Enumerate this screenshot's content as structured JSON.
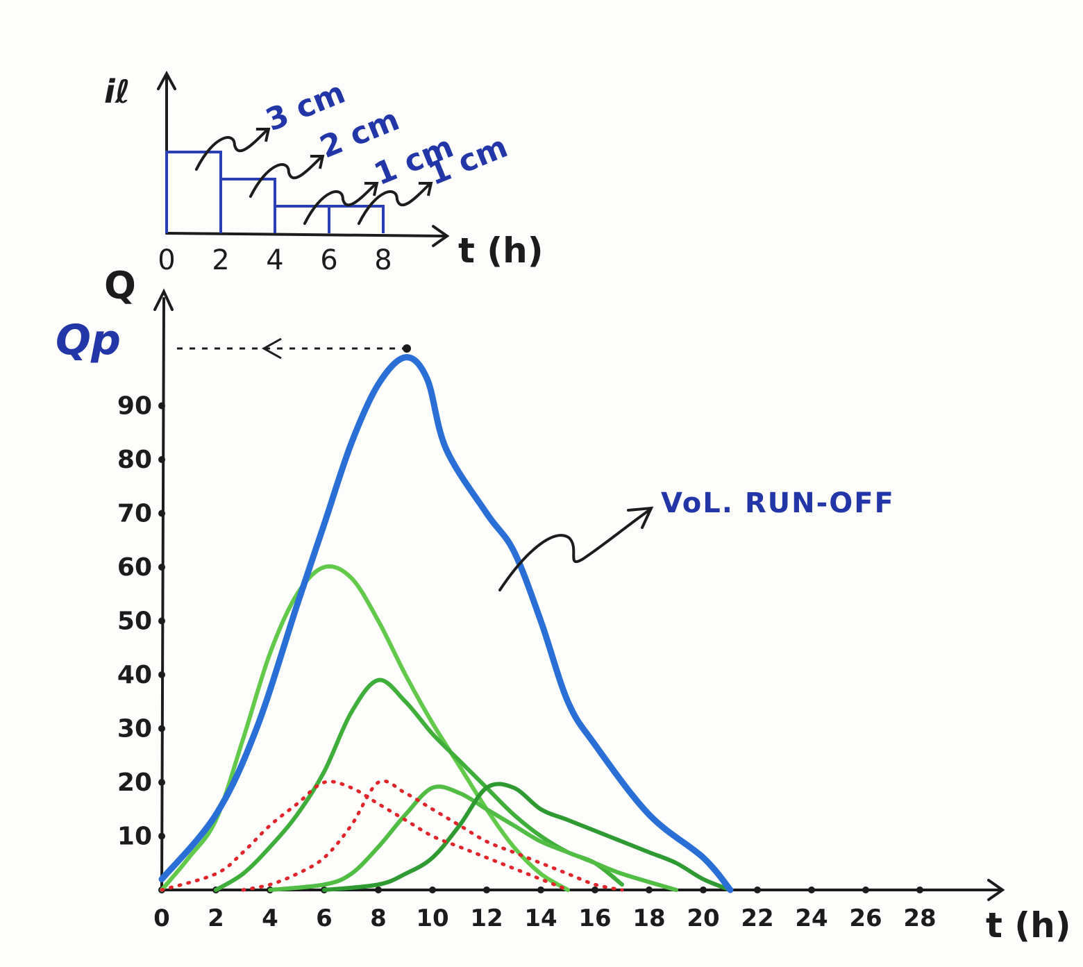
{
  "chart_data": [
    {
      "type": "bar",
      "ylabel": "iℓ",
      "xlabel": "t (h)",
      "x_ticks": [
        "0",
        "2",
        "4",
        "6",
        "8"
      ],
      "blocks": [
        {
          "t_start": 0,
          "t_end": 2,
          "label": "3 cm",
          "depth": 3
        },
        {
          "t_start": 2,
          "t_end": 4,
          "label": "2 cm",
          "depth": 2
        },
        {
          "t_start": 4,
          "t_end": 6,
          "label": "1 cm",
          "depth": 1
        },
        {
          "t_start": 6,
          "t_end": 8,
          "label": "1 cm",
          "depth": 1
        }
      ]
    },
    {
      "type": "line",
      "ylabel": "Q",
      "xlabel": "t (h)",
      "peak_label": "Qp",
      "xlim": [
        0,
        30
      ],
      "ylim": [
        0,
        110
      ],
      "x_ticks": [
        0,
        2,
        4,
        6,
        8,
        10,
        12,
        14,
        16,
        18,
        20,
        22,
        24,
        26,
        28
      ],
      "y_ticks": [
        10,
        20,
        30,
        40,
        50,
        60,
        70,
        80,
        90
      ],
      "annotation": "VoL. RUN-OFF",
      "series": [
        {
          "style": "solid",
          "color": "#2a6fd6",
          "points": [
            [
              0,
              2
            ],
            [
              2,
              14
            ],
            [
              3.5,
              30
            ],
            [
              5,
              53
            ],
            [
              6,
              68
            ],
            [
              7,
              83
            ],
            [
              8,
              94
            ],
            [
              9,
              99
            ],
            [
              9.8,
              95
            ],
            [
              10.5,
              82
            ],
            [
              12,
              70
            ],
            [
              13,
              63
            ],
            [
              14,
              50
            ],
            [
              15,
              35
            ],
            [
              16,
              27
            ],
            [
              18,
              14
            ],
            [
              20,
              6
            ],
            [
              21,
              0
            ]
          ]
        },
        {
          "style": "solid",
          "color": "#62c94a",
          "points": [
            [
              0,
              0
            ],
            [
              1,
              6
            ],
            [
              2,
              13
            ],
            [
              3,
              28
            ],
            [
              4,
              44
            ],
            [
              5,
              55
            ],
            [
              6,
              60
            ],
            [
              7,
              58
            ],
            [
              8,
              50
            ],
            [
              9,
              40
            ],
            [
              10,
              31
            ],
            [
              11,
              23
            ],
            [
              12,
              15
            ],
            [
              13,
              8
            ],
            [
              14,
              3
            ],
            [
              15,
              0
            ]
          ]
        },
        {
          "style": "solid",
          "color": "#3fae3a",
          "points": [
            [
              2,
              0
            ],
            [
              3,
              3
            ],
            [
              4,
              8
            ],
            [
              5,
              14
            ],
            [
              6,
              22
            ],
            [
              7,
              33
            ],
            [
              8,
              39
            ],
            [
              9,
              35
            ],
            [
              10,
              29
            ],
            [
              11,
              24
            ],
            [
              12,
              19
            ],
            [
              13,
              14
            ],
            [
              14,
              10
            ],
            [
              15,
              7
            ],
            [
              16,
              5
            ],
            [
              17,
              1
            ]
          ]
        },
        {
          "style": "solid",
          "color": "#52bd45",
          "points": [
            [
              4,
              0
            ],
            [
              6,
              1
            ],
            [
              7,
              3
            ],
            [
              8,
              8
            ],
            [
              9,
              14
            ],
            [
              10,
              19
            ],
            [
              11,
              18
            ],
            [
              12,
              15
            ],
            [
              13,
              12
            ],
            [
              14,
              9
            ],
            [
              15,
              7
            ],
            [
              16,
              5
            ],
            [
              17,
              3
            ],
            [
              19,
              0
            ]
          ]
        },
        {
          "style": "solid",
          "color": "#2f9a32",
          "points": [
            [
              6,
              0
            ],
            [
              8,
              1
            ],
            [
              9,
              3
            ],
            [
              10,
              6
            ],
            [
              11,
              12
            ],
            [
              12,
              19
            ],
            [
              13,
              19
            ],
            [
              14,
              15
            ],
            [
              15,
              13
            ],
            [
              16,
              11
            ],
            [
              17,
              9
            ],
            [
              18,
              7
            ],
            [
              19,
              5
            ],
            [
              20,
              2
            ],
            [
              21,
              0
            ]
          ]
        },
        {
          "style": "dotted",
          "color": "#e0262b",
          "points": [
            [
              0,
              0
            ],
            [
              2,
              3
            ],
            [
              3,
              7
            ],
            [
              4,
              12
            ],
            [
              5,
              16
            ],
            [
              6,
              20
            ],
            [
              7,
              19
            ],
            [
              8,
              16
            ],
            [
              9,
              13
            ],
            [
              10,
              10
            ],
            [
              11,
              8
            ],
            [
              12,
              6
            ],
            [
              13,
              4
            ],
            [
              14,
              2
            ],
            [
              15,
              0
            ]
          ]
        },
        {
          "style": "dotted",
          "color": "#e0262b",
          "points": [
            [
              3,
              0
            ],
            [
              4,
              1
            ],
            [
              5,
              3
            ],
            [
              6,
              6
            ],
            [
              7,
              12
            ],
            [
              8,
              20
            ],
            [
              9,
              18
            ],
            [
              10,
              15
            ],
            [
              11,
              12
            ],
            [
              12,
              9
            ],
            [
              13,
              7
            ],
            [
              14,
              5
            ],
            [
              15,
              3
            ],
            [
              16,
              1
            ],
            [
              17,
              0
            ]
          ]
        }
      ]
    }
  ]
}
